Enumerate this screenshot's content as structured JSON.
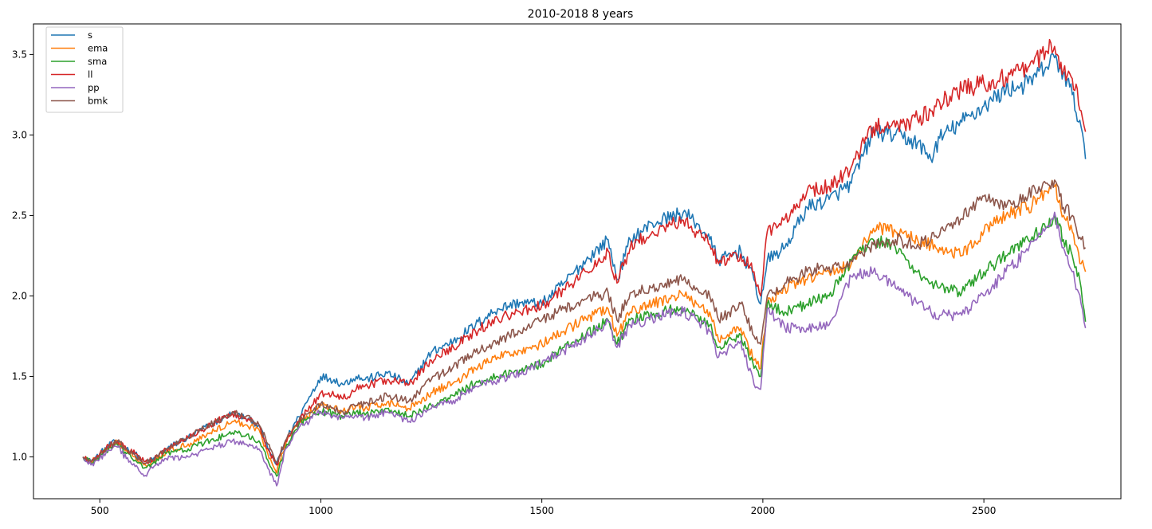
{
  "chart_data": {
    "type": "line",
    "title": "2010-2018 8 years",
    "xlabel": "",
    "ylabel": "",
    "xlim": [
      350,
      2810
    ],
    "ylim": [
      0.74,
      3.69
    ],
    "xticks": [
      500,
      1000,
      1500,
      2000,
      2500
    ],
    "yticks": [
      1.0,
      1.5,
      2.0,
      2.5,
      3.0,
      3.5
    ],
    "xtick_labels": [
      "500",
      "1000",
      "1500",
      "2000",
      "2500"
    ],
    "ytick_labels": [
      "1.0",
      "1.5",
      "2.0",
      "2.5",
      "3.0",
      "3.5"
    ],
    "grid": false,
    "legend": "top-left",
    "series": [
      {
        "name": "s",
        "color": "#1f77b4",
        "x": [
          462,
          480,
          500,
          520,
          540,
          560,
          580,
          600,
          620,
          650,
          700,
          750,
          800,
          830,
          860,
          880,
          900,
          920,
          950,
          980,
          1000,
          1030,
          1050,
          1080,
          1100,
          1150,
          1200,
          1250,
          1300,
          1350,
          1400,
          1450,
          1500,
          1550,
          1600,
          1650,
          1670,
          1700,
          1750,
          1800,
          1820,
          1850,
          1880,
          1900,
          1950,
          1980,
          1995,
          2010,
          2050,
          2100,
          2150,
          2200,
          2250,
          2300,
          2350,
          2380,
          2400,
          2450,
          2500,
          2550,
          2600,
          2640,
          2660,
          2680,
          2700,
          2720,
          2730
        ],
        "y": [
          1.0,
          0.97,
          1.02,
          1.07,
          1.1,
          1.05,
          1.02,
          0.97,
          0.98,
          1.05,
          1.12,
          1.2,
          1.27,
          1.24,
          1.2,
          1.05,
          0.95,
          1.1,
          1.25,
          1.4,
          1.5,
          1.48,
          1.45,
          1.5,
          1.48,
          1.52,
          1.45,
          1.65,
          1.72,
          1.82,
          1.92,
          1.96,
          1.95,
          2.08,
          2.22,
          2.35,
          2.1,
          2.35,
          2.45,
          2.5,
          2.52,
          2.45,
          2.35,
          2.22,
          2.28,
          2.1,
          1.95,
          2.22,
          2.3,
          2.55,
          2.6,
          2.7,
          3.02,
          3.0,
          2.95,
          2.85,
          2.98,
          3.08,
          3.18,
          3.28,
          3.32,
          3.42,
          3.48,
          3.38,
          3.25,
          3.05,
          2.85
        ]
      },
      {
        "name": "ema",
        "color": "#ff7f0e",
        "x": [
          462,
          480,
          500,
          520,
          540,
          560,
          580,
          600,
          620,
          650,
          700,
          750,
          800,
          830,
          860,
          880,
          900,
          920,
          950,
          980,
          1000,
          1030,
          1050,
          1080,
          1100,
          1150,
          1200,
          1250,
          1300,
          1350,
          1400,
          1450,
          1500,
          1550,
          1600,
          1650,
          1670,
          1700,
          1750,
          1800,
          1820,
          1850,
          1880,
          1900,
          1950,
          1980,
          1995,
          2010,
          2050,
          2100,
          2150,
          2200,
          2250,
          2300,
          2350,
          2380,
          2400,
          2450,
          2500,
          2550,
          2600,
          2640,
          2660,
          2680,
          2700,
          2720,
          2730
        ],
        "y": [
          1.0,
          0.97,
          1.01,
          1.06,
          1.09,
          1.04,
          1.0,
          0.95,
          0.97,
          1.03,
          1.08,
          1.15,
          1.22,
          1.2,
          1.17,
          1.02,
          0.9,
          1.08,
          1.22,
          1.28,
          1.32,
          1.3,
          1.28,
          1.32,
          1.3,
          1.34,
          1.3,
          1.4,
          1.46,
          1.55,
          1.62,
          1.66,
          1.7,
          1.78,
          1.86,
          1.92,
          1.75,
          1.9,
          1.95,
          2.0,
          2.0,
          1.95,
          1.9,
          1.72,
          1.8,
          1.6,
          1.55,
          1.95,
          2.05,
          2.1,
          2.15,
          2.2,
          2.42,
          2.4,
          2.35,
          2.32,
          2.3,
          2.25,
          2.4,
          2.5,
          2.55,
          2.65,
          2.68,
          2.5,
          2.4,
          2.2,
          2.15
        ]
      },
      {
        "name": "sma",
        "color": "#2ca02c",
        "x": [
          462,
          480,
          500,
          520,
          540,
          560,
          580,
          600,
          620,
          650,
          700,
          750,
          800,
          830,
          860,
          880,
          900,
          920,
          950,
          980,
          1000,
          1030,
          1050,
          1080,
          1100,
          1150,
          1200,
          1250,
          1300,
          1350,
          1400,
          1450,
          1500,
          1550,
          1600,
          1650,
          1670,
          1700,
          1750,
          1800,
          1820,
          1850,
          1880,
          1900,
          1950,
          1980,
          1995,
          2010,
          2050,
          2100,
          2150,
          2200,
          2250,
          2300,
          2350,
          2380,
          2400,
          2450,
          2500,
          2550,
          2600,
          2640,
          2660,
          2680,
          2700,
          2720,
          2730
        ],
        "y": [
          1.0,
          0.96,
          1.0,
          1.05,
          1.08,
          1.02,
          0.98,
          0.93,
          0.96,
          1.02,
          1.05,
          1.1,
          1.15,
          1.13,
          1.1,
          0.98,
          0.88,
          1.05,
          1.2,
          1.25,
          1.28,
          1.27,
          1.25,
          1.28,
          1.26,
          1.3,
          1.25,
          1.32,
          1.38,
          1.46,
          1.5,
          1.54,
          1.58,
          1.68,
          1.76,
          1.85,
          1.7,
          1.85,
          1.88,
          1.92,
          1.92,
          1.88,
          1.82,
          1.68,
          1.76,
          1.55,
          1.5,
          1.95,
          1.9,
          1.95,
          2.0,
          2.22,
          2.35,
          2.3,
          2.15,
          2.08,
          2.05,
          2.02,
          2.15,
          2.25,
          2.35,
          2.42,
          2.5,
          2.35,
          2.25,
          2.05,
          1.84
        ]
      },
      {
        "name": "ll",
        "color": "#d62728",
        "x": [
          462,
          480,
          500,
          520,
          540,
          560,
          580,
          600,
          620,
          650,
          700,
          750,
          800,
          830,
          860,
          880,
          900,
          920,
          950,
          980,
          1000,
          1030,
          1050,
          1080,
          1100,
          1150,
          1200,
          1250,
          1300,
          1350,
          1400,
          1450,
          1500,
          1550,
          1600,
          1650,
          1670,
          1700,
          1750,
          1800,
          1820,
          1850,
          1880,
          1900,
          1950,
          1980,
          1995,
          2010,
          2050,
          2100,
          2150,
          2200,
          2250,
          2300,
          2350,
          2380,
          2400,
          2450,
          2500,
          2550,
          2600,
          2640,
          2660,
          2680,
          2700,
          2720,
          2730
        ],
        "y": [
          1.0,
          0.97,
          1.02,
          1.07,
          1.1,
          1.05,
          1.02,
          0.97,
          0.98,
          1.05,
          1.12,
          1.2,
          1.27,
          1.24,
          1.2,
          1.05,
          0.95,
          1.1,
          1.22,
          1.32,
          1.4,
          1.38,
          1.36,
          1.42,
          1.44,
          1.48,
          1.45,
          1.6,
          1.68,
          1.78,
          1.86,
          1.9,
          1.94,
          2.04,
          2.15,
          2.28,
          2.08,
          2.3,
          2.4,
          2.45,
          2.47,
          2.4,
          2.32,
          2.2,
          2.26,
          2.15,
          2.0,
          2.4,
          2.48,
          2.65,
          2.68,
          2.8,
          3.05,
          3.05,
          3.1,
          3.15,
          3.2,
          3.28,
          3.32,
          3.36,
          3.42,
          3.52,
          3.55,
          3.4,
          3.35,
          3.15,
          3.02
        ]
      },
      {
        "name": "pp",
        "color": "#9467bd",
        "x": [
          462,
          480,
          500,
          520,
          540,
          560,
          580,
          600,
          620,
          650,
          700,
          750,
          800,
          830,
          860,
          880,
          900,
          920,
          950,
          980,
          1000,
          1030,
          1050,
          1080,
          1100,
          1150,
          1200,
          1250,
          1300,
          1350,
          1400,
          1450,
          1500,
          1550,
          1600,
          1650,
          1670,
          1700,
          1750,
          1800,
          1820,
          1850,
          1880,
          1900,
          1950,
          1980,
          1995,
          2010,
          2050,
          2100,
          2150,
          2200,
          2250,
          2300,
          2350,
          2380,
          2400,
          2450,
          2500,
          2550,
          2600,
          2640,
          2660,
          2680,
          2700,
          2720,
          2730
        ],
        "y": [
          1.0,
          0.95,
          0.99,
          1.04,
          1.06,
          0.99,
          0.94,
          0.88,
          0.93,
          0.99,
          1.0,
          1.05,
          1.1,
          1.08,
          1.05,
          0.93,
          0.82,
          1.05,
          1.18,
          1.24,
          1.28,
          1.26,
          1.24,
          1.26,
          1.24,
          1.28,
          1.22,
          1.3,
          1.35,
          1.44,
          1.48,
          1.52,
          1.58,
          1.66,
          1.74,
          1.84,
          1.68,
          1.82,
          1.86,
          1.9,
          1.9,
          1.85,
          1.78,
          1.62,
          1.72,
          1.45,
          1.42,
          1.92,
          1.8,
          1.8,
          1.82,
          2.12,
          2.15,
          2.05,
          1.95,
          1.9,
          1.88,
          1.88,
          2.0,
          2.15,
          2.28,
          2.42,
          2.52,
          2.3,
          2.15,
          1.95,
          1.8
        ]
      },
      {
        "name": "bmk",
        "color": "#8c564b",
        "x": [
          462,
          480,
          500,
          520,
          540,
          560,
          580,
          600,
          620,
          650,
          700,
          750,
          800,
          830,
          860,
          880,
          900,
          920,
          950,
          980,
          1000,
          1030,
          1050,
          1080,
          1100,
          1150,
          1200,
          1250,
          1300,
          1350,
          1400,
          1450,
          1500,
          1550,
          1600,
          1650,
          1670,
          1700,
          1750,
          1800,
          1820,
          1850,
          1880,
          1900,
          1950,
          1980,
          1995,
          2010,
          2050,
          2100,
          2150,
          2200,
          2250,
          2300,
          2350,
          2380,
          2400,
          2450,
          2500,
          2550,
          2600,
          2640,
          2660,
          2680,
          2700,
          2720,
          2730
        ],
        "y": [
          1.0,
          0.97,
          1.01,
          1.06,
          1.1,
          1.05,
          1.01,
          0.96,
          0.98,
          1.05,
          1.12,
          1.2,
          1.28,
          1.25,
          1.2,
          1.08,
          0.97,
          1.1,
          1.22,
          1.28,
          1.33,
          1.3,
          1.28,
          1.32,
          1.33,
          1.38,
          1.35,
          1.48,
          1.56,
          1.65,
          1.72,
          1.78,
          1.85,
          1.92,
          1.98,
          2.02,
          1.85,
          2.02,
          2.05,
          2.1,
          2.1,
          2.05,
          2.0,
          1.85,
          1.95,
          1.75,
          1.7,
          2.0,
          2.08,
          2.15,
          2.18,
          2.22,
          2.32,
          2.35,
          2.32,
          2.35,
          2.38,
          2.48,
          2.62,
          2.55,
          2.62,
          2.7,
          2.72,
          2.55,
          2.5,
          2.35,
          2.3
        ]
      }
    ]
  }
}
